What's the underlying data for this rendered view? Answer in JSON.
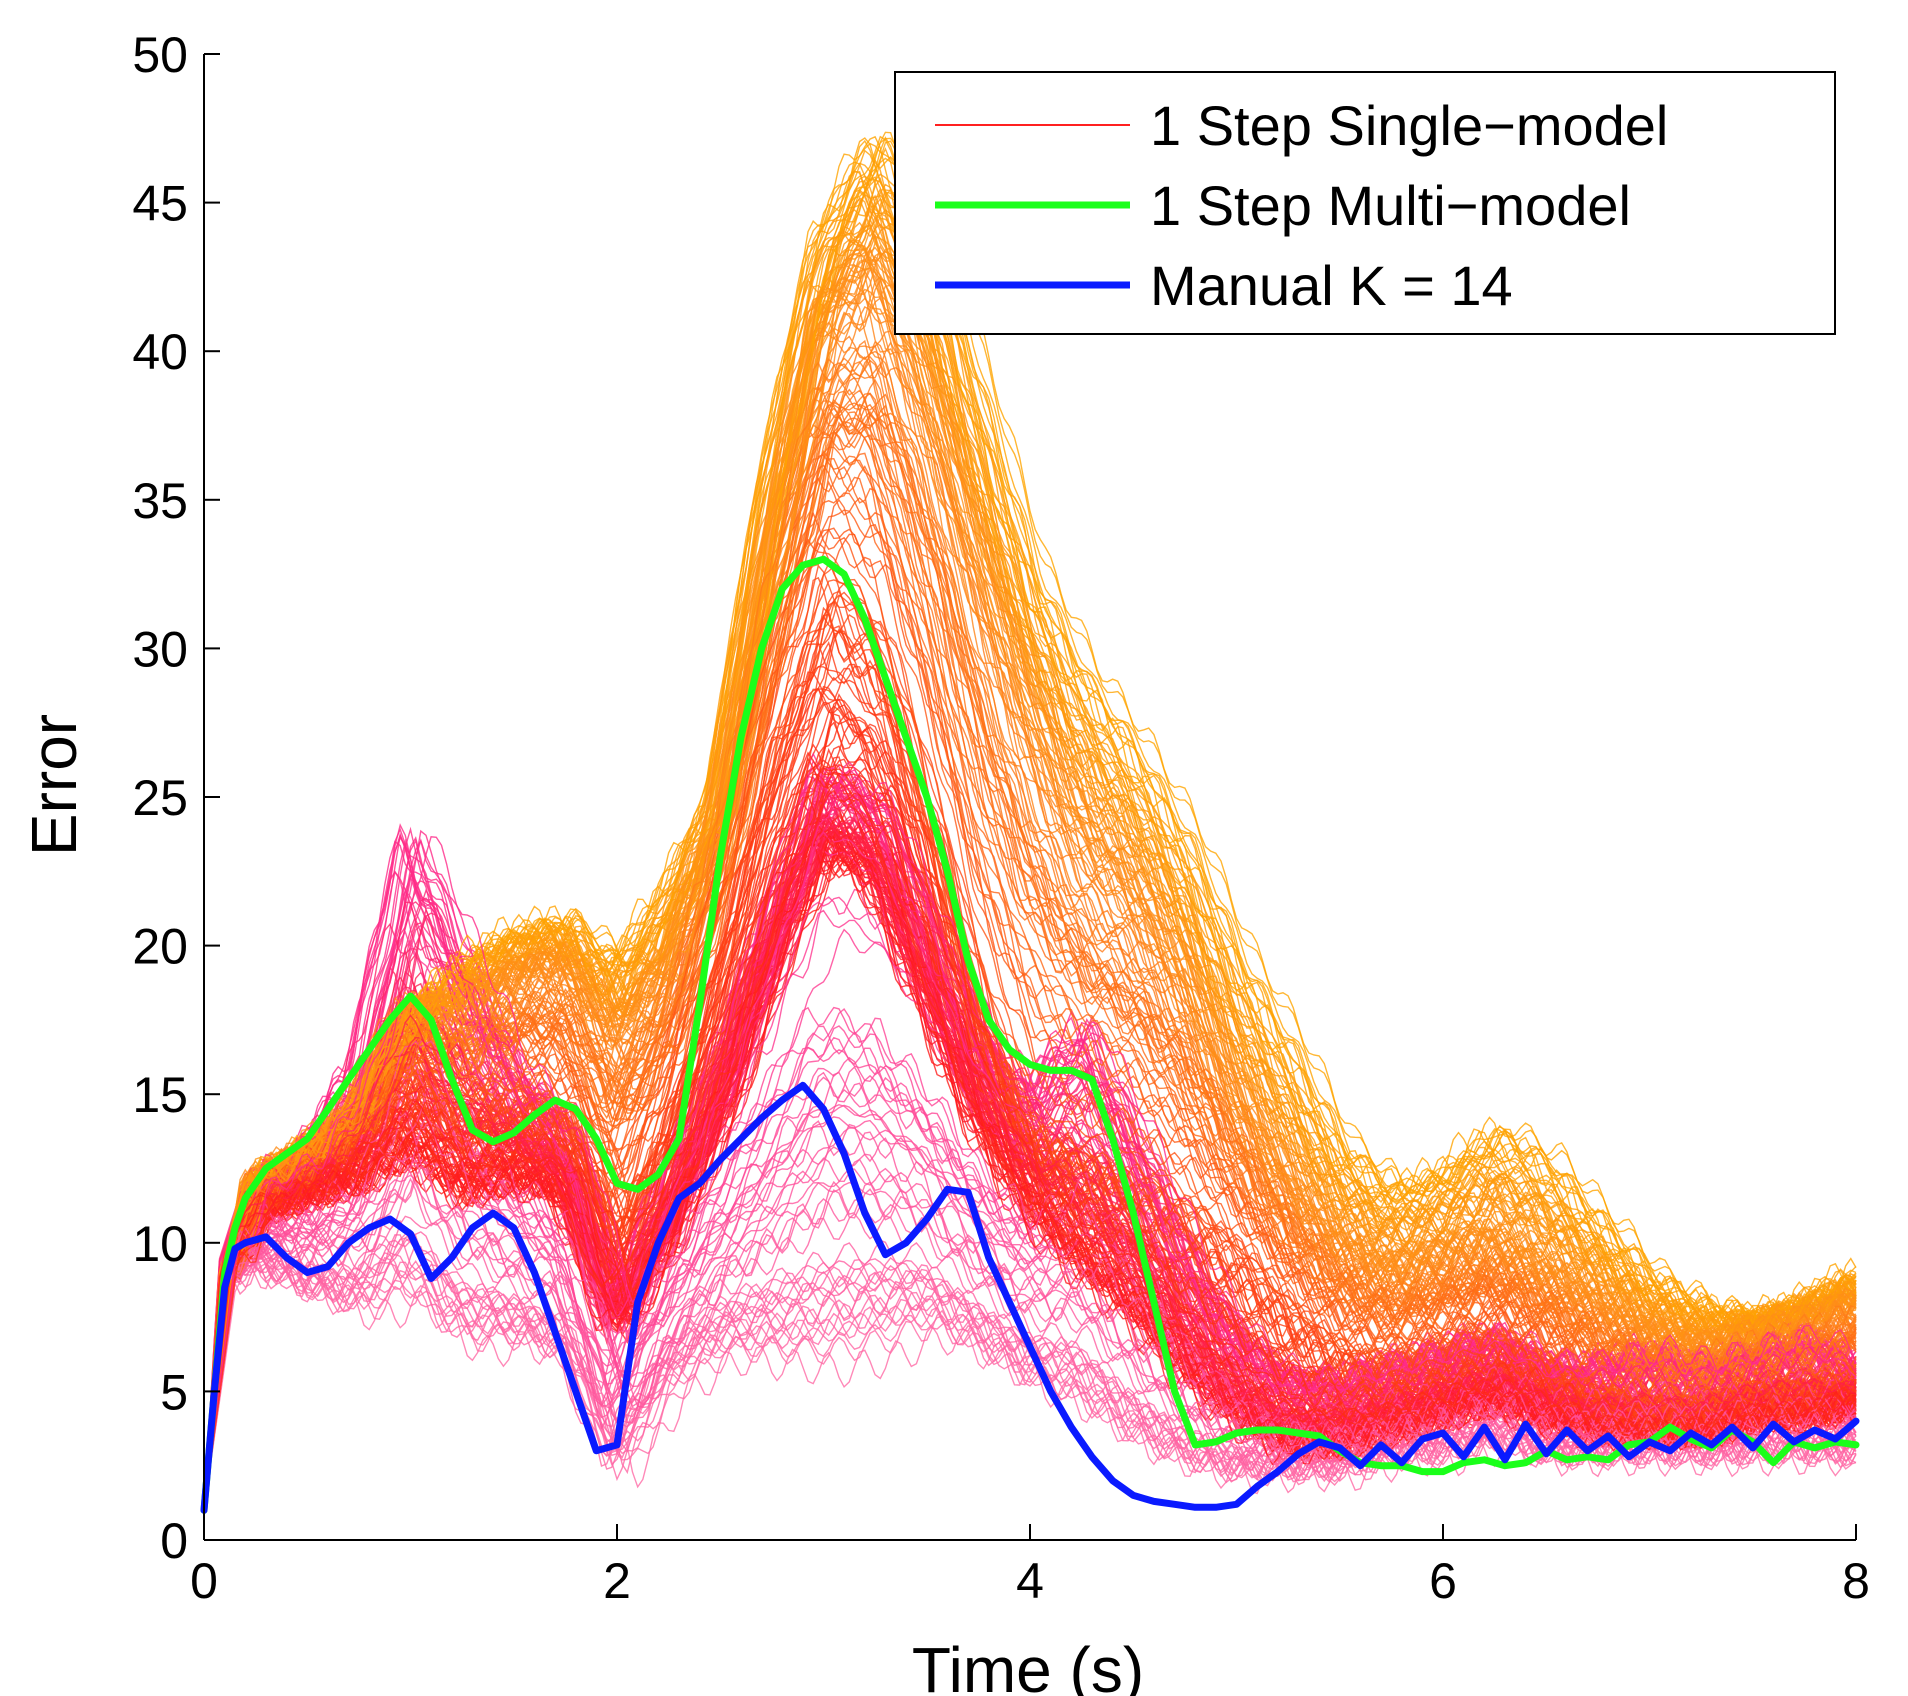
{
  "chart_data": {
    "type": "line",
    "xlabel": "Time (s)",
    "ylabel": "Error",
    "xlim": [
      0,
      8
    ],
    "ylim": [
      0,
      50
    ],
    "xticks": [
      "0",
      "2",
      "4",
      "6",
      "8"
    ],
    "yticks": [
      "0",
      "5",
      "10",
      "15",
      "20",
      "25",
      "30",
      "35",
      "40",
      "45",
      "50"
    ],
    "grid": false,
    "legend_position": "top-right",
    "series": [
      {
        "name": "1 Step Single−model",
        "color": "#ff2020",
        "style": "band of many thin curves, colors ranging from pink to red to orange",
        "members": [
          {
            "color": "#ffa500",
            "x": [
              0,
              0.1,
              0.25,
              0.5,
              0.75,
              1,
              1.25,
              1.5,
              1.75,
              2,
              2.25,
              2.5,
              2.75,
              3,
              3.25,
              3.5,
              3.75,
              4,
              4.25,
              4.5,
              4.75,
              5,
              5.25,
              5.5,
              5.75,
              6,
              6.25,
              6.5,
              6.75,
              7,
              7.25,
              7.5,
              7.75,
              8
            ],
            "y": [
              1,
              9,
              12,
              13,
              14,
              17,
              19.5,
              20.5,
              21,
              19.5,
              22,
              25,
              36,
              44,
              47.5,
              45,
              39,
              33,
              29.5,
              27,
              24,
              20,
              17,
              13.5,
              12,
              12.5,
              14,
              13,
              11,
              9,
              8,
              7.5,
              8,
              9
            ]
          },
          {
            "color": "#ff8c1a",
            "x": [
              0,
              0.1,
              0.25,
              0.5,
              0.75,
              1,
              1.25,
              1.5,
              1.75,
              2,
              2.25,
              2.5,
              2.75,
              3,
              3.25,
              3.5,
              3.75,
              4,
              4.25,
              4.5,
              4.75,
              5,
              5.25,
              5.5,
              5.75,
              6,
              6.25,
              6.5,
              6.75,
              7,
              7.25,
              7.5,
              7.75,
              8
            ],
            "y": [
              1,
              9,
              12,
              13,
              14.5,
              18,
              18,
              19,
              19.5,
              17,
              19,
              24,
              33,
              41,
              43,
              39,
              33,
              28,
              24,
              22,
              19,
              15,
              12,
              10,
              9,
              9.5,
              10,
              9,
              8,
              7,
              6.5,
              7,
              7.5,
              8
            ]
          },
          {
            "color": "#ff4d14",
            "x": [
              0,
              0.1,
              0.25,
              0.5,
              0.75,
              1,
              1.25,
              1.5,
              1.75,
              2,
              2.25,
              2.5,
              2.75,
              3,
              3.25,
              3.5,
              3.75,
              4,
              4.25,
              4.5,
              4.75,
              5,
              5.25,
              5.5,
              5.75,
              6,
              6.25,
              6.5,
              6.75,
              7,
              7.25,
              7.5,
              7.75,
              8
            ],
            "y": [
              1,
              9,
              11.5,
              12.5,
              14,
              16,
              14.5,
              15,
              14.5,
              11,
              15,
              21,
              28,
              33,
              31,
              25,
              18,
              14,
              13,
              12.5,
              11.5,
              10,
              8,
              6.5,
              6,
              6.5,
              7,
              6,
              5,
              4.5,
              4.5,
              5,
              5,
              5.5
            ]
          },
          {
            "color": "#ff1a1a",
            "x": [
              0,
              0.1,
              0.25,
              0.5,
              0.75,
              1,
              1.25,
              1.5,
              1.75,
              2,
              2.25,
              2.5,
              2.75,
              3,
              3.25,
              3.5,
              3.75,
              4,
              4.25,
              4.5,
              4.75,
              5,
              5.25,
              5.5,
              5.75,
              6,
              6.25,
              6.5,
              6.75,
              7,
              7.25,
              7.5,
              7.75,
              8
            ],
            "y": [
              1,
              9,
              11,
              11.5,
              12,
              13,
              11.5,
              12,
              11.5,
              7,
              10,
              14,
              19,
              23,
              22,
              18,
              14,
              11,
              9,
              7.5,
              5.5,
              4,
              3,
              3,
              3.5,
              4,
              4.5,
              4,
              3.5,
              3.5,
              3.5,
              4,
              4,
              4.5
            ]
          },
          {
            "color": "#ff2a8a",
            "x": [
              0,
              0.1,
              0.25,
              0.5,
              0.75,
              1,
              1.25,
              1.5,
              1.75,
              2,
              2.25,
              2.5,
              2.75,
              3,
              3.25,
              3.5,
              3.75,
              4,
              4.25,
              4.5,
              4.75,
              5,
              5.25,
              5.5,
              5.75,
              6,
              6.25,
              6.5,
              6.75,
              7,
              7.25,
              7.5,
              7.75,
              8
            ],
            "y": [
              1,
              9.5,
              12,
              13,
              16,
              24,
              20,
              16,
              14,
              8,
              12,
              16,
              21,
              26,
              25,
              21,
              17,
              15,
              17.5,
              14,
              10,
              7,
              5.5,
              5.5,
              6,
              6.5,
              7,
              6,
              6,
              6.5,
              6,
              6.5,
              7,
              6
            ]
          },
          {
            "color": "#ff6fa8",
            "x": [
              0,
              0.1,
              0.25,
              0.5,
              0.75,
              1,
              1.25,
              1.5,
              1.75,
              2,
              2.25,
              2.5,
              2.75,
              3,
              3.25,
              3.5,
              3.75,
              4,
              4.25,
              4.5,
              4.75,
              5,
              5.25,
              5.5,
              5.75,
              6,
              6.25,
              6.5,
              6.75,
              7,
              7.25,
              7.5,
              7.75,
              8
            ],
            "y": [
              1,
              8.5,
              9,
              8,
              7,
              7,
              5.5,
              6,
              5.5,
              1.8,
              4.5,
              5.5,
              5,
              4.5,
              5,
              6,
              5.5,
              4.5,
              3.5,
              2.5,
              2,
              1.8,
              2,
              2,
              2.5,
              2.5,
              3,
              2.5,
              2.5,
              2.5,
              2.5,
              2.5,
              2.5,
              2.5
            ]
          }
        ]
      },
      {
        "name": "1 Step Multi−model",
        "color": "#1aff1a",
        "x": [
          0,
          0.05,
          0.1,
          0.15,
          0.2,
          0.3,
          0.4,
          0.5,
          0.6,
          0.7,
          0.8,
          0.9,
          1.0,
          1.1,
          1.2,
          1.3,
          1.4,
          1.5,
          1.6,
          1.7,
          1.8,
          1.9,
          2.0,
          2.1,
          2.2,
          2.3,
          2.4,
          2.5,
          2.6,
          2.7,
          2.8,
          2.9,
          3.0,
          3.1,
          3.2,
          3.3,
          3.4,
          3.5,
          3.6,
          3.7,
          3.8,
          3.9,
          4.0,
          4.1,
          4.2,
          4.3,
          4.4,
          4.5,
          4.6,
          4.7,
          4.8,
          4.9,
          5.0,
          5.1,
          5.2,
          5.3,
          5.4,
          5.5,
          5.6,
          5.7,
          5.8,
          5.9,
          6.0,
          6.1,
          6.2,
          6.3,
          6.4,
          6.5,
          6.6,
          6.7,
          6.8,
          6.9,
          7.0,
          7.1,
          7.2,
          7.3,
          7.4,
          7.5,
          7.6,
          7.7,
          7.8,
          7.9,
          8.0
        ],
        "y": [
          1,
          5,
          9,
          10.5,
          11.5,
          12.5,
          13,
          13.5,
          14.5,
          15.5,
          16.5,
          17.5,
          18.3,
          17.5,
          15.5,
          13.8,
          13.4,
          13.7,
          14.3,
          14.8,
          14.5,
          13.5,
          12,
          11.8,
          12.3,
          13.5,
          18,
          23,
          27,
          30,
          32,
          32.8,
          33,
          32.5,
          31,
          29,
          27,
          25,
          22.5,
          19.5,
          17.5,
          16.5,
          16,
          15.8,
          15.8,
          15.5,
          13.5,
          11,
          8,
          5,
          3.2,
          3.3,
          3.6,
          3.7,
          3.7,
          3.6,
          3.5,
          3,
          2.6,
          2.5,
          2.5,
          2.3,
          2.3,
          2.6,
          2.7,
          2.5,
          2.6,
          3.0,
          2.7,
          2.8,
          2.7,
          3.2,
          3.3,
          3.8,
          3.4,
          3.1,
          3.7,
          3.3,
          2.6,
          3.3,
          3.1,
          3.3,
          3.2
        ]
      },
      {
        "name": "Manual K = 14",
        "color": "#0a1aff",
        "x": [
          0,
          0.05,
          0.1,
          0.15,
          0.2,
          0.3,
          0.4,
          0.5,
          0.6,
          0.7,
          0.8,
          0.9,
          1.0,
          1.1,
          1.2,
          1.3,
          1.4,
          1.5,
          1.6,
          1.7,
          1.8,
          1.9,
          2.0,
          2.1,
          2.2,
          2.3,
          2.4,
          2.5,
          2.6,
          2.7,
          2.8,
          2.9,
          3.0,
          3.1,
          3.2,
          3.3,
          3.4,
          3.5,
          3.6,
          3.7,
          3.8,
          3.9,
          4.0,
          4.1,
          4.2,
          4.3,
          4.4,
          4.5,
          4.6,
          4.7,
          4.8,
          4.9,
          5.0,
          5.1,
          5.2,
          5.3,
          5.4,
          5.5,
          5.6,
          5.7,
          5.8,
          5.9,
          6.0,
          6.1,
          6.2,
          6.3,
          6.4,
          6.5,
          6.6,
          6.7,
          6.8,
          6.9,
          7.0,
          7.1,
          7.2,
          7.3,
          7.4,
          7.5,
          7.6,
          7.7,
          7.8,
          7.9,
          8.0
        ],
        "y": [
          1,
          5,
          8.5,
          9.8,
          10,
          10.2,
          9.5,
          9,
          9.2,
          10,
          10.5,
          10.8,
          10.3,
          8.8,
          9.5,
          10.5,
          11,
          10.5,
          9,
          7,
          5,
          3,
          3.2,
          8,
          10,
          11.5,
          12,
          12.8,
          13.5,
          14.2,
          14.8,
          15.3,
          14.5,
          13,
          11,
          9.6,
          10,
          10.8,
          11.8,
          11.7,
          9.5,
          8,
          6.5,
          5,
          3.8,
          2.8,
          2,
          1.5,
          1.3,
          1.2,
          1.1,
          1.1,
          1.2,
          1.8,
          2.3,
          2.9,
          3.3,
          3.1,
          2.5,
          3.2,
          2.6,
          3.4,
          3.6,
          2.8,
          3.8,
          2.7,
          3.9,
          2.9,
          3.7,
          3.0,
          3.5,
          2.8,
          3.3,
          3.0,
          3.6,
          3.2,
          3.8,
          3.1,
          3.9,
          3.3,
          3.7,
          3.4,
          4.0
        ]
      }
    ]
  }
}
